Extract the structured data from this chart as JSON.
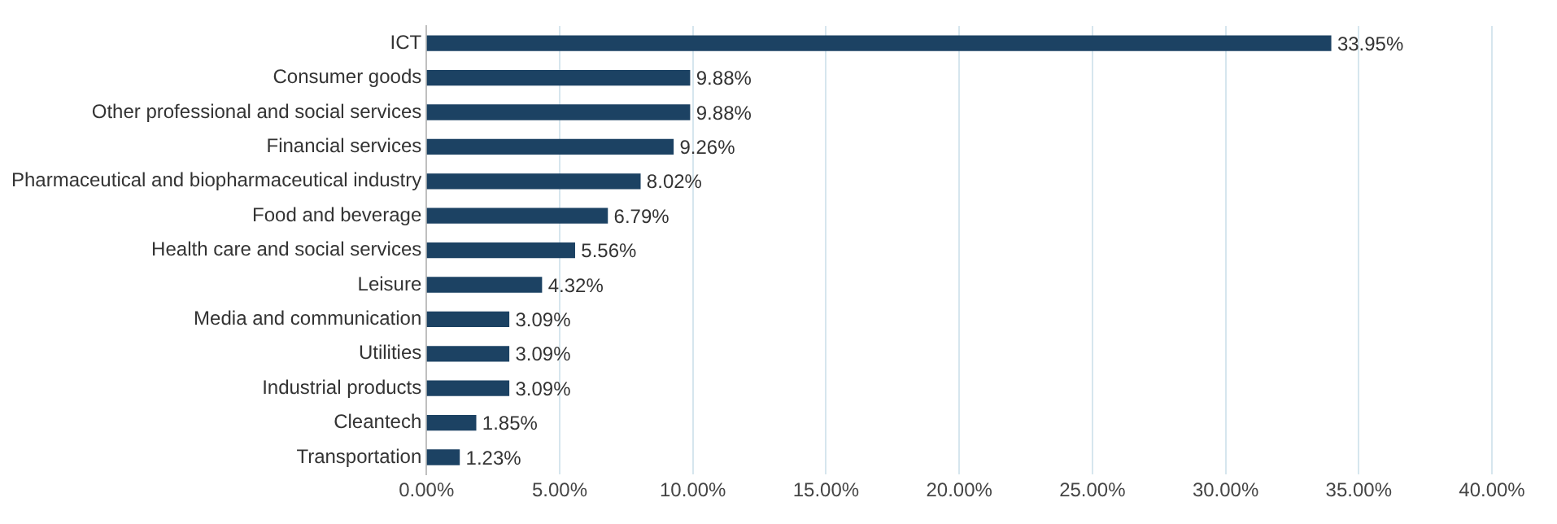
{
  "chart_data": {
    "type": "bar",
    "orientation": "horizontal",
    "categories": [
      "ICT",
      "Consumer goods",
      "Other professional and social services",
      "Financial services",
      "Pharmaceutical and biopharmaceutical industry",
      "Food and beverage",
      "Health care and social services",
      "Leisure",
      "Media and communication",
      "Utilities",
      "Industrial products",
      "Cleantech",
      "Transportation"
    ],
    "values": [
      33.95,
      9.88,
      9.88,
      9.26,
      8.02,
      6.79,
      5.56,
      4.32,
      3.09,
      3.09,
      3.09,
      1.85,
      1.23
    ],
    "value_labels": [
      "33.95%",
      "9.88%",
      "9.88%",
      "9.26%",
      "8.02%",
      "6.79%",
      "5.56%",
      "4.32%",
      "3.09%",
      "3.09%",
      "3.09%",
      "1.85%",
      "1.23%"
    ],
    "color": "#1c4263",
    "xlim": [
      0,
      40
    ],
    "xticks": [
      {
        "value": 0,
        "label": "0.00%"
      },
      {
        "value": 5,
        "label": "5.00%"
      },
      {
        "value": 10,
        "label": "10.00%"
      },
      {
        "value": 15,
        "label": "15.00%"
      },
      {
        "value": 20,
        "label": "20.00%"
      },
      {
        "value": 25,
        "label": "25.00%"
      },
      {
        "value": 30,
        "label": "30.00%"
      },
      {
        "value": 35,
        "label": "35.00%"
      },
      {
        "value": 40,
        "label": "40.00%"
      }
    ],
    "grid": "x",
    "legend": false
  }
}
